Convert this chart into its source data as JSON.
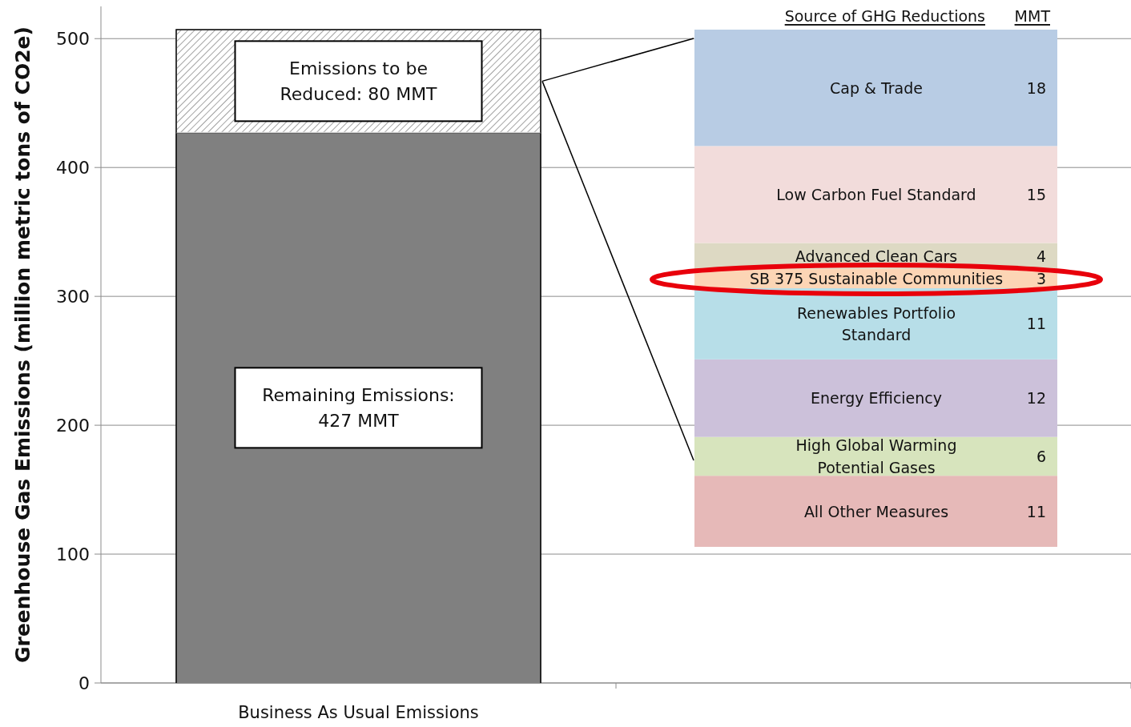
{
  "chart_data": [
    {
      "type": "bar",
      "stacked": true,
      "categories": [
        "Business As Usual Emissions",
        null
      ],
      "ylabel": "Greenhouse Gas Emissions (million metric tons of CO2e)",
      "ylim": [
        0,
        525
      ],
      "yticks": [
        0,
        100,
        200,
        300,
        400,
        500
      ],
      "grid": "y",
      "legend": false,
      "series": [
        {
          "color": "#808080",
          "values": [
            427,
            null
          ],
          "value_labels": [
            "Remaining Emissions:\n427 MMT",
            null
          ]
        },
        {
          "color": "#e0e0e0",
          "values": [
            80,
            null
          ],
          "value_labels": [
            "Emissions to be\nReduced:  80 MMT",
            null
          ]
        }
      ]
    },
    {
      "type": "bar",
      "stacked": true,
      "categories": [
        null
      ],
      "title": "Source of GHG Reductions",
      "ylabel": "MMT",
      "data_labels": true,
      "legend": false,
      "series": [
        {
          "name": "All Other Measures",
          "color": "#e6b9b8",
          "values": [
            11
          ]
        },
        {
          "name": "High Global Warming\nPotential Gases",
          "color": "#d7e4bd",
          "values": [
            6
          ]
        },
        {
          "name": "Energy Efficiency",
          "color": "#ccc1da",
          "values": [
            12
          ]
        },
        {
          "name": "Renewables Portfolio\nStandard",
          "color": "#b7dee8",
          "values": [
            11
          ]
        },
        {
          "name": "SB 375 Sustainable Communities",
          "color": "#fcd5b5",
          "values": [
            3
          ]
        },
        {
          "name": "Advanced Clean Cars",
          "color": "#ddd9c3",
          "values": [
            4
          ]
        },
        {
          "name": "Low Carbon Fuel Standard",
          "color": "#f2dcdb",
          "values": [
            15
          ]
        },
        {
          "name": "Cap & Trade",
          "color": "#b8cce4",
          "values": [
            18
          ]
        }
      ]
    }
  ]
}
